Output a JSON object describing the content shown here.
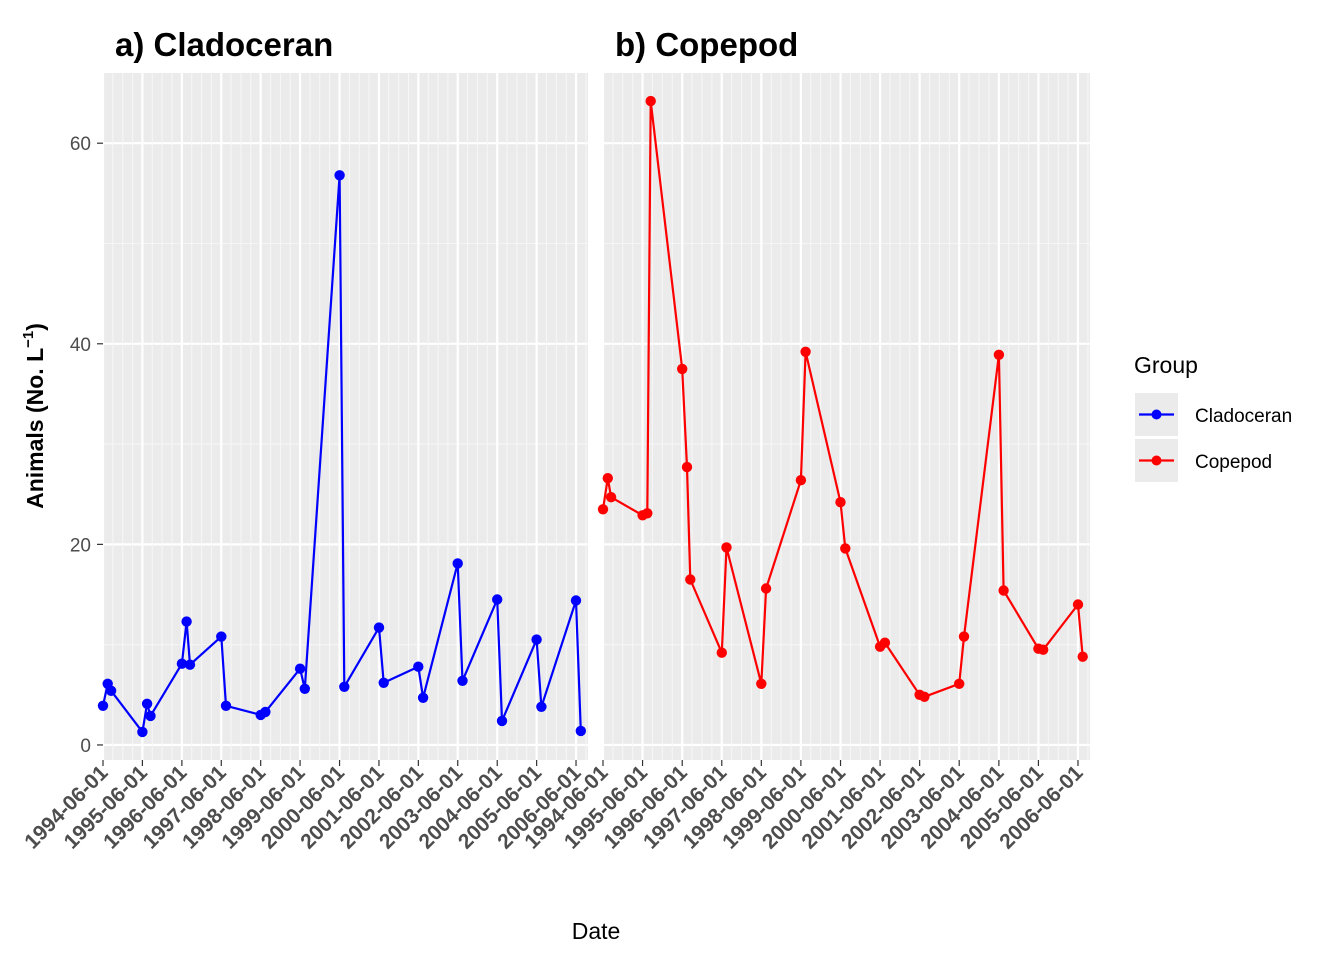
{
  "chart_data": {
    "type": "line",
    "xlabel": "Date",
    "ylabel": "Animals (No. L",
    "ylabel_sup": "−1",
    "ylabel_close": ")",
    "ylim": [
      -1.5,
      67
    ],
    "y_ticks": [
      0,
      20,
      40,
      60
    ],
    "y_tick_labels": [
      "0",
      "20",
      "40",
      "60"
    ],
    "x_range": [
      "1994-06-01",
      "2006-09-20"
    ],
    "x_tick_labels": [
      "1994-06-01",
      "1995-06-01",
      "1996-06-01",
      "1997-06-01",
      "1998-06-01",
      "1999-06-01",
      "2000-06-01",
      "2001-06-01",
      "2002-06-01",
      "2003-06-01",
      "2004-06-01",
      "2005-06-01",
      "2006-06-01"
    ],
    "grid": true,
    "legend": {
      "title": "Group",
      "placement": "right",
      "entries": [
        {
          "label": "Cladoceran",
          "color": "#0000ff"
        },
        {
          "label": "Copepod",
          "color": "#ff0000"
        }
      ]
    },
    "panels": [
      {
        "title": "a) Cladoceran",
        "series": {
          "name": "Cladoceran",
          "color": "#0000ff",
          "x": [
            "1994-06-01",
            "1994-07-15",
            "1994-08-15",
            "1995-06-01",
            "1995-07-15",
            "1995-08-15",
            "1996-06-01",
            "1996-07-15",
            "1996-08-15",
            "1997-06-01",
            "1997-07-15",
            "1998-06-01",
            "1998-07-15",
            "1999-06-01",
            "1999-07-15",
            "2000-06-01",
            "2000-07-15",
            "2001-06-01",
            "2001-07-15",
            "2002-06-01",
            "2002-07-15",
            "2003-06-01",
            "2003-07-15",
            "2004-06-01",
            "2004-07-15",
            "2005-06-01",
            "2005-07-15",
            "2006-06-01",
            "2006-07-15"
          ],
          "y": [
            3.9,
            6.1,
            5.4,
            1.3,
            4.1,
            2.9,
            8.1,
            12.3,
            8.0,
            10.8,
            3.9,
            3.0,
            3.3,
            7.6,
            5.6,
            56.8,
            5.8,
            11.7,
            6.2,
            7.8,
            4.7,
            18.1,
            6.4,
            14.5,
            2.4,
            10.5,
            3.8,
            14.4,
            1.4
          ]
        }
      },
      {
        "title": "b) Copepod",
        "series": {
          "name": "Copepod",
          "color": "#ff0000",
          "x": [
            "1994-06-01",
            "1994-07-15",
            "1994-08-15",
            "1995-06-01",
            "1995-07-15",
            "1995-08-15",
            "1996-06-01",
            "1996-07-15",
            "1996-08-15",
            "1997-06-01",
            "1997-07-15",
            "1998-06-01",
            "1998-07-15",
            "1999-06-01",
            "1999-07-15",
            "2000-06-01",
            "2000-07-15",
            "2001-06-01",
            "2001-07-15",
            "2002-06-01",
            "2002-07-15",
            "2003-06-01",
            "2003-07-15",
            "2004-06-01",
            "2004-07-15",
            "2005-06-01",
            "2005-07-15",
            "2006-06-01",
            "2006-07-15"
          ],
          "y": [
            23.5,
            26.6,
            24.7,
            22.9,
            23.1,
            64.2,
            37.5,
            27.7,
            16.5,
            9.2,
            19.7,
            6.1,
            15.6,
            26.4,
            39.2,
            24.2,
            19.6,
            9.8,
            10.2,
            5.0,
            4.8,
            6.1,
            10.8,
            38.9,
            15.4,
            9.6,
            9.5,
            14.0,
            8.8
          ]
        }
      }
    ]
  }
}
